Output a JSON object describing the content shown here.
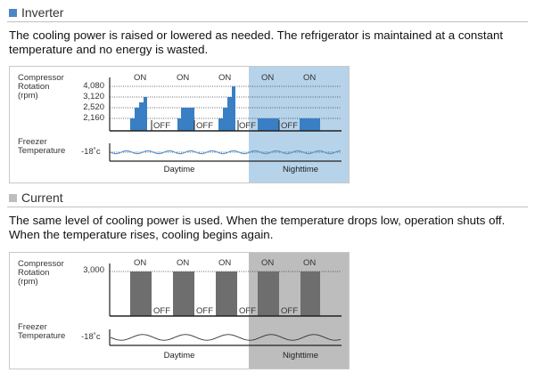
{
  "colors": {
    "inverter_accent": "#4a86c8",
    "inverter_bar": "#3a7fc3",
    "inverter_night": "#b6d3ea",
    "current_accent": "#bdbdbd",
    "current_bar": "#6e6e6e",
    "current_night": "#bdbdbd",
    "wave": "#5a9bd0"
  },
  "inverter": {
    "heading": "Inverter",
    "description": "The cooling power is raised or lowered as needed. The refrigerator is maintained at a constant temperature and no energy is wasted.",
    "compressor_label": [
      "Compressor",
      "Rotation",
      "(rpm)"
    ],
    "ticks": [
      "4,080",
      "3,120",
      "2,520",
      "2,160"
    ],
    "freezer_label": [
      "Freezer",
      "Temperature"
    ],
    "temp": "-18˚c",
    "on_labels": [
      "ON",
      "ON",
      "ON",
      "ON",
      "ON"
    ],
    "off_labels": [
      "OFF",
      "OFF",
      "OFF",
      "OFF"
    ],
    "daytime": "Daytime",
    "nighttime": "Nighttime"
  },
  "current": {
    "heading": "Current",
    "description": "The same level of cooling power is used. When the temperature drops low, operation shuts off. When the temperature rises, cooling begins again.",
    "compressor_label": [
      "Compressor",
      "Rotation",
      "(rpm)"
    ],
    "ticks": [
      "3,000"
    ],
    "freezer_label": [
      "Freezer",
      "Temperature"
    ],
    "temp": "-18˚c",
    "on_labels": [
      "ON",
      "ON",
      "ON",
      "ON",
      "ON"
    ],
    "off_labels": [
      "OFF",
      "OFF",
      "OFF",
      "OFF"
    ],
    "daytime": "Daytime",
    "nighttime": "Nighttime"
  }
}
